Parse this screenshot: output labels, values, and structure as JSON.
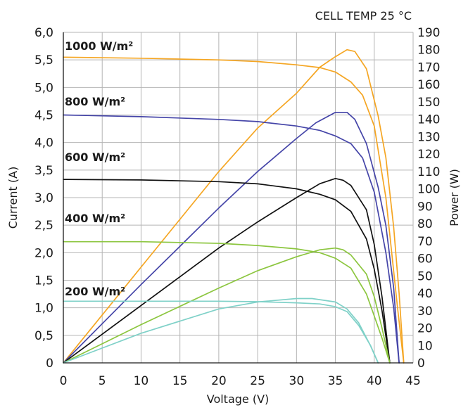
{
  "note": "CELL TEMP 25 °C",
  "xlabel": "Voltage (V)",
  "ylabel_left": "Current (A)",
  "ylabel_right": "Power (W)",
  "colors": {
    "1000": "#f5a623",
    "800": "#4545a8",
    "600": "#111111",
    "400": "#8cc63f",
    "200": "#7fd1c8",
    "grid": "#b4b4b4"
  },
  "chart_data": {
    "type": "line",
    "title": "",
    "xlabel": "Voltage (V)",
    "ylabel": "Current (A)",
    "y2label": "Power (W)",
    "xlim": [
      0,
      45
    ],
    "ylim": [
      0,
      6
    ],
    "y2lim": [
      0,
      190
    ],
    "grid": true,
    "x_ticks": [
      "0",
      "5",
      "10",
      "15",
      "20",
      "25",
      "30",
      "35",
      "40",
      "45"
    ],
    "y_ticks": [
      "0",
      "0,5",
      "1,0",
      "1,5",
      "2,0",
      "2,5",
      "3,0",
      "3,5",
      "4,0",
      "4,5",
      "5,0",
      "5,5",
      "6,0"
    ],
    "y2_ticks": [
      "0",
      "10",
      "20",
      "30",
      "40",
      "50",
      "60",
      "70",
      "80",
      "90",
      "100",
      "110",
      "120",
      "130",
      "140",
      "150",
      "160",
      "170",
      "180",
      "190"
    ],
    "annotation": "CELL TEMP 25 °C",
    "series": [
      {
        "name": "1000 W/m²",
        "color": "#f5a623",
        "current": {
          "x": [
            0,
            10,
            20,
            25,
            30,
            33,
            35,
            37,
            38.5,
            40,
            41.5,
            43,
            43.8
          ],
          "y": [
            5.55,
            5.53,
            5.5,
            5.47,
            5.41,
            5.36,
            5.28,
            5.1,
            4.86,
            4.3,
            3.0,
            1.0,
            0
          ]
        },
        "power": {
          "x": [
            0,
            10,
            20,
            25,
            30,
            33,
            35,
            36.5,
            37.5,
            39,
            40.5,
            41.5,
            42.5,
            43.2,
            43.8
          ],
          "y": [
            0,
            55,
            110,
            135,
            155,
            170,
            176,
            180,
            179,
            169,
            142,
            118,
            78,
            40,
            0
          ]
        }
      },
      {
        "name": "800 W/m²",
        "color": "#4545a8",
        "current": {
          "x": [
            0,
            10,
            20,
            25,
            30,
            33,
            35,
            37,
            38.5,
            40,
            41.5,
            42.5,
            43.2
          ],
          "y": [
            4.5,
            4.47,
            4.42,
            4.38,
            4.3,
            4.22,
            4.12,
            3.98,
            3.72,
            3.1,
            2.0,
            1.0,
            0
          ]
        },
        "power": {
          "x": [
            0,
            10,
            20,
            25,
            30,
            32.5,
            35,
            36.5,
            37.5,
            39,
            40.5,
            41.5,
            42.5,
            43.2
          ],
          "y": [
            0,
            45,
            89,
            110,
            129,
            138,
            144,
            144,
            140,
            126,
            101,
            79,
            43,
            0
          ]
        }
      },
      {
        "name": "600 W/m²",
        "color": "#111111",
        "current": {
          "x": [
            0,
            10,
            20,
            25,
            30,
            33,
            35,
            37,
            39,
            40,
            41,
            42
          ],
          "y": [
            3.33,
            3.32,
            3.29,
            3.25,
            3.16,
            3.06,
            2.96,
            2.75,
            2.25,
            1.7,
            0.95,
            0
          ]
        },
        "power": {
          "x": [
            0,
            10,
            20,
            25,
            30,
            33,
            35,
            36,
            37,
            39,
            40,
            41,
            42
          ],
          "y": [
            0,
            33,
            66,
            81,
            95,
            103,
            106,
            105,
            102,
            88,
            68,
            38,
            0
          ]
        }
      },
      {
        "name": "400 W/m²",
        "color": "#8cc63f",
        "current": {
          "x": [
            0,
            10,
            20,
            25,
            30,
            33,
            35,
            37,
            39,
            40,
            41,
            42
          ],
          "y": [
            2.2,
            2.2,
            2.17,
            2.13,
            2.07,
            2.0,
            1.9,
            1.72,
            1.25,
            0.85,
            0.45,
            0
          ]
        },
        "power": {
          "x": [
            0,
            10,
            20,
            25,
            30,
            33,
            35,
            36,
            37,
            39,
            40,
            41,
            42
          ],
          "y": [
            0,
            22,
            43,
            53,
            61,
            65,
            66,
            65,
            62,
            51,
            38,
            20,
            0
          ]
        }
      },
      {
        "name": "200 W/m²",
        "color": "#7fd1c8",
        "current": {
          "x": [
            0,
            10,
            20,
            25,
            30,
            33,
            35,
            36.5,
            38,
            39.5,
            40.5
          ],
          "y": [
            1.12,
            1.12,
            1.12,
            1.11,
            1.09,
            1.07,
            1.02,
            0.93,
            0.68,
            0.32,
            0
          ]
        },
        "power": {
          "x": [
            0,
            10,
            20,
            25,
            30,
            32,
            35,
            36.5,
            38,
            39.5,
            40.5
          ],
          "y": [
            0,
            17,
            31,
            35,
            37,
            37,
            35,
            31,
            23,
            10,
            0
          ]
        }
      }
    ]
  }
}
